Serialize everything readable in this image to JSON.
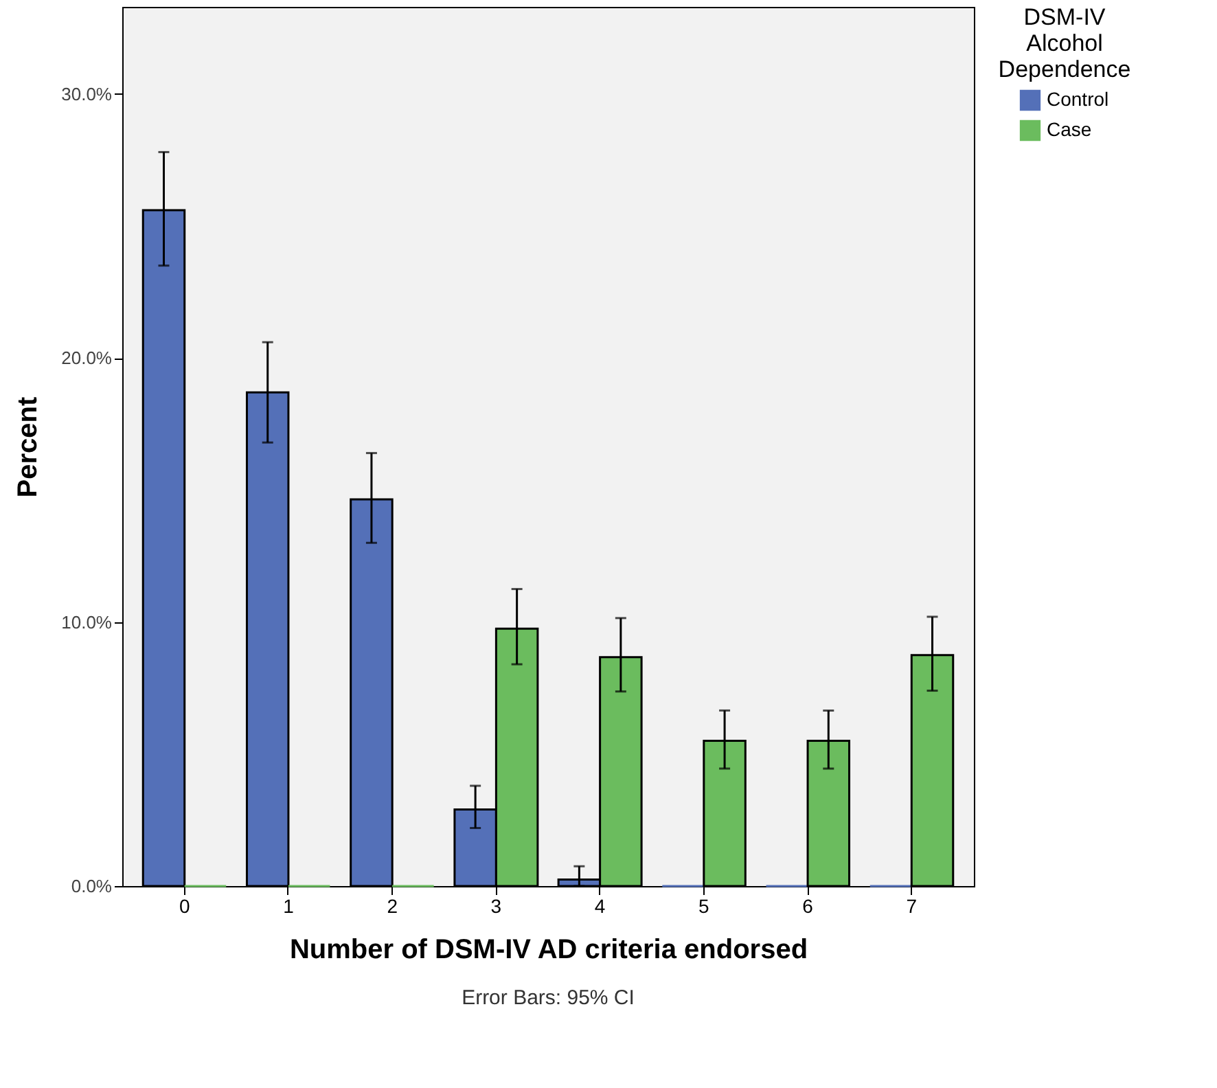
{
  "chart_data": {
    "type": "bar",
    "xlabel": "Number of DSM-IV AD criteria endorsed",
    "ylabel": "Percent",
    "legend_title": "DSM-IV Alcohol Dependence",
    "categories": [
      "0",
      "1",
      "2",
      "3",
      "4",
      "5",
      "6",
      "7"
    ],
    "series": [
      {
        "name": "Control",
        "color": "#5470b8",
        "values": [
          25.6,
          18.7,
          14.65,
          2.9,
          0.25,
          0,
          0,
          0
        ],
        "errors": [
          [
            23.5,
            27.8
          ],
          [
            16.8,
            20.6
          ],
          [
            13.0,
            16.4
          ],
          [
            2.2,
            3.8
          ],
          [
            0,
            0.75
          ],
          null,
          null,
          null
        ]
      },
      {
        "name": "Case",
        "color": "#6bbc5e",
        "values": [
          0,
          0,
          0,
          9.75,
          8.67,
          5.5,
          5.5,
          8.75
        ],
        "errors": [
          null,
          null,
          null,
          [
            8.4,
            11.25
          ],
          [
            7.37,
            10.15
          ],
          [
            4.45,
            6.65
          ],
          [
            4.45,
            6.65
          ],
          [
            7.4,
            10.2
          ]
        ]
      }
    ],
    "ylim": [
      0,
      33.3
    ],
    "yticks": [
      {
        "value": 0,
        "label": "0.0%"
      },
      {
        "value": 10,
        "label": "10.0%"
      },
      {
        "value": 20,
        "label": "20.0%"
      },
      {
        "value": 30,
        "label": "30.0%"
      }
    ],
    "grid": false,
    "legend": "top right",
    "annotations": [
      "Error Bars: 95% CI"
    ]
  }
}
